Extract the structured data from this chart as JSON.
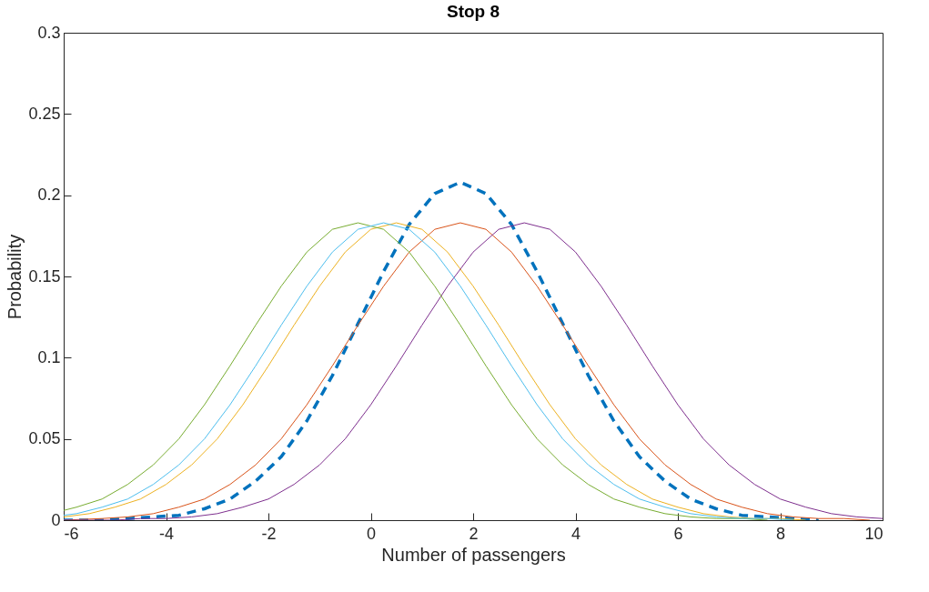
{
  "chart_data": {
    "type": "line",
    "title": "Stop 8",
    "xlabel": "Number of passengers",
    "ylabel": "Probability",
    "xlim": [
      -6,
      10
    ],
    "xticks": [
      -6,
      -4,
      -2,
      0,
      2,
      4,
      6,
      8,
      10
    ],
    "ylim": [
      0,
      0.3
    ],
    "yticks": [
      0,
      0.05,
      0.1,
      0.15,
      0.2,
      0.25,
      0.3
    ],
    "grid": false,
    "series": [
      {
        "color": "#0072bd",
        "line_style": "dashed",
        "x": [
          -6,
          -5.25,
          -4.75,
          -4.25,
          -3.75,
          -3.25,
          -2.75,
          -2.25,
          -1.75,
          -1.25,
          -0.75,
          -0.25,
          0.25,
          0.75,
          1.25,
          1.75,
          2.25,
          2.75,
          3.25,
          3.75,
          4.25,
          4.75,
          5.25,
          5.75,
          6.25,
          6.75,
          7.25,
          7.75,
          8.25,
          8.75
        ],
        "values": [
          0.0,
          0.0,
          0.001,
          0.002,
          0.003,
          0.007,
          0.013,
          0.024,
          0.039,
          0.061,
          0.089,
          0.121,
          0.153,
          0.182,
          0.201,
          0.208,
          0.201,
          0.182,
          0.153,
          0.121,
          0.089,
          0.061,
          0.039,
          0.024,
          0.013,
          0.007,
          0.003,
          0.002,
          0.001,
          0.0
        ]
      },
      {
        "color": "#d95319",
        "line_style": "solid",
        "x": [
          -6,
          -5.25,
          -4.75,
          -4.25,
          -3.75,
          -3.25,
          -2.75,
          -2.25,
          -1.75,
          -1.25,
          -0.75,
          -0.25,
          0.25,
          0.75,
          1.25,
          1.75,
          2.25,
          2.75,
          3.25,
          3.75,
          4.25,
          4.75,
          5.25,
          5.75,
          6.25,
          6.75,
          7.25,
          7.75,
          8.25,
          8.75,
          9.25,
          9.75
        ],
        "values": [
          0.0,
          0.001,
          0.002,
          0.004,
          0.008,
          0.013,
          0.022,
          0.034,
          0.05,
          0.071,
          0.095,
          0.12,
          0.144,
          0.165,
          0.179,
          0.183,
          0.179,
          0.165,
          0.144,
          0.12,
          0.095,
          0.071,
          0.05,
          0.034,
          0.022,
          0.013,
          0.008,
          0.004,
          0.002,
          0.001,
          0.001,
          0.0
        ]
      },
      {
        "color": "#edb120",
        "line_style": "solid",
        "x": [
          -6,
          -5.5,
          -5,
          -4.5,
          -4,
          -3.5,
          -3,
          -2.5,
          -2,
          -1.5,
          -1,
          -0.5,
          0,
          0.5,
          1,
          1.5,
          2,
          2.5,
          3,
          3.5,
          4,
          4.5,
          5,
          5.5,
          6,
          6.5,
          7,
          7.5,
          8,
          8.5
        ],
        "values": [
          0.002,
          0.004,
          0.008,
          0.013,
          0.022,
          0.034,
          0.05,
          0.071,
          0.095,
          0.12,
          0.144,
          0.165,
          0.179,
          0.183,
          0.179,
          0.165,
          0.144,
          0.12,
          0.095,
          0.071,
          0.05,
          0.034,
          0.022,
          0.013,
          0.008,
          0.004,
          0.002,
          0.001,
          0.001,
          0.0
        ]
      },
      {
        "color": "#7e2f8e",
        "line_style": "solid",
        "x": [
          -6,
          -5,
          -4.5,
          -4,
          -3.5,
          -3,
          -2.5,
          -2,
          -1.5,
          -1,
          -0.5,
          0,
          0.5,
          1,
          1.5,
          2,
          2.5,
          3,
          3.5,
          4,
          4.5,
          5,
          5.5,
          6,
          6.5,
          7,
          7.5,
          8,
          8.5,
          9,
          9.5,
          10
        ],
        "values": [
          0.0,
          0.0,
          0.001,
          0.001,
          0.002,
          0.004,
          0.008,
          0.013,
          0.022,
          0.034,
          0.05,
          0.071,
          0.095,
          0.12,
          0.144,
          0.165,
          0.179,
          0.183,
          0.179,
          0.165,
          0.144,
          0.12,
          0.095,
          0.071,
          0.05,
          0.034,
          0.022,
          0.013,
          0.008,
          0.004,
          0.002,
          0.001
        ]
      },
      {
        "color": "#77ac30",
        "line_style": "solid",
        "x": [
          -6,
          -5.75,
          -5.25,
          -4.75,
          -4.25,
          -3.75,
          -3.25,
          -2.75,
          -2.25,
          -1.75,
          -1.25,
          -0.75,
          -0.25,
          0.25,
          0.75,
          1.25,
          1.75,
          2.25,
          2.75,
          3.25,
          3.75,
          4.25,
          4.75,
          5.25,
          5.75,
          6.25,
          6.75,
          7.25,
          7.75
        ],
        "values": [
          0.006,
          0.008,
          0.013,
          0.022,
          0.034,
          0.05,
          0.071,
          0.095,
          0.12,
          0.144,
          0.165,
          0.179,
          0.183,
          0.179,
          0.165,
          0.144,
          0.12,
          0.095,
          0.071,
          0.05,
          0.034,
          0.022,
          0.013,
          0.008,
          0.004,
          0.002,
          0.001,
          0.001,
          0.0
        ]
      },
      {
        "color": "#4dbeee",
        "line_style": "solid",
        "x": [
          -6,
          -5.75,
          -5.25,
          -4.75,
          -4.25,
          -3.75,
          -3.25,
          -2.75,
          -2.25,
          -1.75,
          -1.25,
          -0.75,
          -0.25,
          0.25,
          0.75,
          1.25,
          1.75,
          2.25,
          2.75,
          3.25,
          3.75,
          4.25,
          4.75,
          5.25,
          5.75,
          6.25,
          6.75,
          7.25,
          7.75,
          8.25
        ],
        "values": [
          0.003,
          0.004,
          0.008,
          0.013,
          0.022,
          0.034,
          0.05,
          0.071,
          0.095,
          0.12,
          0.144,
          0.165,
          0.179,
          0.183,
          0.179,
          0.165,
          0.144,
          0.12,
          0.095,
          0.071,
          0.05,
          0.034,
          0.022,
          0.013,
          0.008,
          0.004,
          0.002,
          0.001,
          0.001,
          0.0
        ]
      }
    ]
  }
}
